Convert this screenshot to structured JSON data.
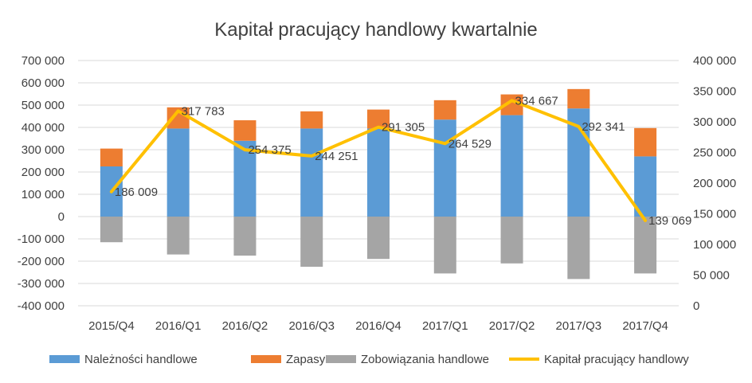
{
  "chart_data": {
    "type": "bar",
    "title": "Kapitał pracujący handlowy kwartalnie",
    "categories": [
      "2015/Q4",
      "2016/Q1",
      "2016/Q2",
      "2016/Q3",
      "2016/Q4",
      "2017/Q1",
      "2017/Q2",
      "2017/Q3",
      "2017/Q4"
    ],
    "stacked": true,
    "series": [
      {
        "name": "Należności handlowe",
        "type": "bar",
        "axis": "left",
        "color": "#5b9bd5",
        "values": [
          225000,
          395000,
          340000,
          395000,
          395000,
          435000,
          455000,
          485000,
          270000
        ]
      },
      {
        "name": "Zapasy",
        "type": "bar",
        "axis": "left",
        "color": "#ed7d31",
        "values": [
          80000,
          95000,
          92000,
          77000,
          85000,
          87000,
          93000,
          87000,
          127000
        ]
      },
      {
        "name": "Zobowiązania handlowe",
        "type": "bar",
        "axis": "left",
        "color": "#a5a5a5",
        "values": [
          -115000,
          -170000,
          -175000,
          -225000,
          -190000,
          -255000,
          -210000,
          -280000,
          -255000
        ]
      },
      {
        "name": "Kapitał pracujący handlowy",
        "type": "line",
        "axis": "right",
        "color": "#ffc000",
        "values": [
          186009,
          317783,
          254375,
          244251,
          291305,
          264529,
          334667,
          292341,
          139069
        ],
        "labels": [
          "186 009",
          "317 783",
          "254 375",
          "244 251",
          "291 305",
          "264 529",
          "334 667",
          "292 341",
          "139 069"
        ]
      }
    ],
    "y_left": {
      "min": -400000,
      "max": 700000,
      "step": 100000,
      "tick_labels": [
        "-400 000",
        "-300 000",
        "-200 000",
        "-100 000",
        "0",
        "100 000",
        "200 000",
        "300 000",
        "400 000",
        "500 000",
        "600 000",
        "700 000"
      ]
    },
    "y_right": {
      "min": 0,
      "max": 400000,
      "step": 50000,
      "tick_labels": [
        "0",
        "50 000",
        "100 000",
        "150 000",
        "200 000",
        "250 000",
        "300 000",
        "350 000",
        "400 000"
      ]
    },
    "grid": true,
    "legend_position": "bottom"
  }
}
